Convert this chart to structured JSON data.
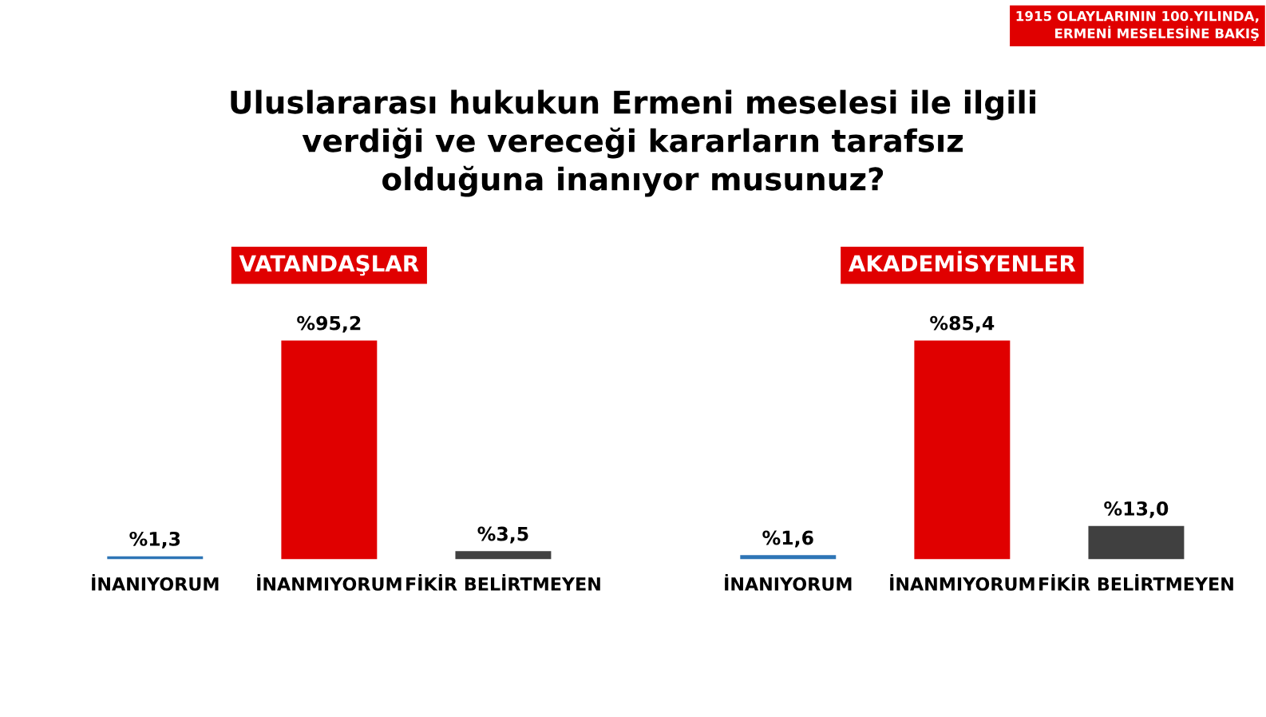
{
  "chart_data": [
    {
      "type": "bar",
      "title": "Uluslararası hukukun Ermeni meselesi ile ilgili\nverdiği ve vereceği kararların tarafsız\nolduğuna inanıyor musunuz?",
      "subtitle": "VATANDAŞLAR",
      "annotations": [
        "1915 OLAYLARININ 100.YILINDA,\nERMENİ MESELESİNE BAKIŞ"
      ],
      "categories": [
        "İNANIYORUM",
        "İNANMIYORUM",
        "FİKİR BELİRTMEYEN"
      ],
      "values": [
        1.3,
        95.2,
        3.5
      ],
      "colors": [
        "#2e75b6",
        "#e00000",
        "#404040"
      ],
      "value_labels": [
        "%1,3",
        "%95,2",
        "%3,5"
      ]
    },
    {
      "type": "bar",
      "subtitle": "AKADEMİSYENLER",
      "categories": [
        "İNANIYORUM",
        "İNANMIYORUM",
        "FİKİR BELİRTMEYEN"
      ],
      "values": [
        1.6,
        85.4,
        13.0
      ],
      "colors": [
        "#2e75b6",
        "#e00000",
        "#404040"
      ],
      "value_labels": [
        "%1,6",
        "%85,4",
        "%13,0"
      ]
    }
  ]
}
